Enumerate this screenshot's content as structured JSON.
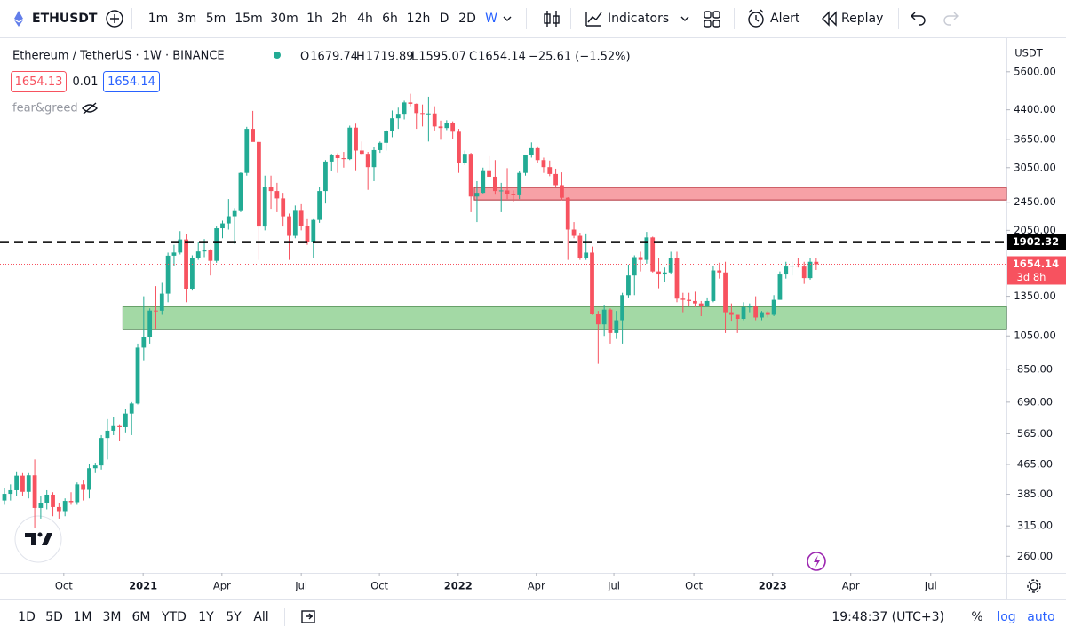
{
  "toolbar": {
    "symbol": "ETHUSDT",
    "intervals": [
      "1m",
      "3m",
      "5m",
      "15m",
      "30m",
      "1h",
      "2h",
      "4h",
      "6h",
      "12h",
      "D",
      "2D",
      "W"
    ],
    "buttons": [
      "Indicators",
      "Alert",
      "Replay"
    ]
  },
  "legend": {
    "title": "Ethereum / TetherUS · 1W · BINANCE",
    "labels": [
      "O",
      "H",
      "L",
      "C"
    ],
    "change": "−25.61 (−1.52%)",
    "bid": "1654.13",
    "spread": "0.01",
    "ask": "1654.14",
    "indicator": "fear&greed"
  },
  "price_axis": {
    "unit": "USDT",
    "countdown": "3d 8h"
  },
  "bottom_bar": {
    "ranges": [
      "1D",
      "5D",
      "1M",
      "3M",
      "6M",
      "YTD",
      "1Y",
      "5Y",
      "All"
    ],
    "time": "19:48:37 (UTC+3)",
    "options": [
      "%",
      "log",
      "auto"
    ]
  },
  "chart_data": {
    "type": "candlestick",
    "log_scale": true,
    "up_color": "#22ab94",
    "down_color": "#f7525f",
    "xlim": [
      -0.73,
      165.4
    ],
    "ylim": [
      234,
      6850
    ],
    "xticks": [
      {
        "value": 9.8,
        "label": "Oct"
      },
      {
        "value": 22.9,
        "label": "2021"
      },
      {
        "value": 35.9,
        "label": "Apr"
      },
      {
        "value": 49.0,
        "label": "Jul"
      },
      {
        "value": 61.9,
        "label": "Oct"
      },
      {
        "value": 74.9,
        "label": "2022"
      },
      {
        "value": 87.8,
        "label": "Apr"
      },
      {
        "value": 100.6,
        "label": "Jul"
      },
      {
        "value": 113.8,
        "label": "Oct"
      },
      {
        "value": 126.8,
        "label": "2023"
      },
      {
        "value": 139.7,
        "label": "Apr"
      },
      {
        "value": 152.9,
        "label": "Jul"
      }
    ],
    "yticks": [
      {
        "value": 5600,
        "label": "5600.00"
      },
      {
        "value": 4400,
        "label": "4400.00"
      },
      {
        "value": 3650,
        "label": "3650.00"
      },
      {
        "value": 3050,
        "label": "3050.00"
      },
      {
        "value": 2450,
        "label": "2450.00"
      },
      {
        "value": 2050,
        "label": "2050.00"
      },
      {
        "value": 1350,
        "label": "1350.00"
      },
      {
        "value": 1050,
        "label": "1050.00"
      },
      {
        "value": 850,
        "label": "850.00"
      },
      {
        "value": 690,
        "label": "690.00"
      },
      {
        "value": 565,
        "label": "565.00"
      },
      {
        "value": 465,
        "label": "465.00"
      },
      {
        "value": 385,
        "label": "385.00"
      },
      {
        "value": 315,
        "label": "315.00"
      },
      {
        "value": 260,
        "label": "260.00"
      }
    ],
    "lines": [
      {
        "value": 1902.32,
        "style": "dashed",
        "color": "#000000"
      }
    ],
    "zones": [
      {
        "from": 2485,
        "to": 2690,
        "start": 78,
        "color": "#f7a1a6",
        "border": "#b2333d"
      },
      {
        "from": 1093,
        "to": 1266,
        "start": 20,
        "color": "#a3d9a5",
        "border": "#2e6b30"
      }
    ],
    "ohlc": [
      [
        370,
        400,
        360,
        386
      ],
      [
        386,
        410,
        370,
        395
      ],
      [
        395,
        445,
        380,
        433
      ],
      [
        433,
        440,
        380,
        391
      ],
      [
        391,
        440,
        375,
        434
      ],
      [
        434,
        480,
        310,
        353
      ],
      [
        353,
        380,
        330,
        365
      ],
      [
        365,
        395,
        350,
        384
      ],
      [
        384,
        390,
        335,
        355
      ],
      [
        355,
        365,
        330,
        346
      ],
      [
        346,
        375,
        335,
        369
      ],
      [
        369,
        390,
        360,
        366
      ],
      [
        366,
        415,
        360,
        410
      ],
      [
        410,
        420,
        370,
        396
      ],
      [
        396,
        465,
        375,
        454
      ],
      [
        454,
        470,
        440,
        462
      ],
      [
        462,
        560,
        450,
        550
      ],
      [
        550,
        620,
        480,
        576
      ],
      [
        576,
        630,
        560,
        593
      ],
      [
        593,
        600,
        540,
        589
      ],
      [
        589,
        660,
        570,
        642
      ],
      [
        642,
        690,
        560,
        684
      ],
      [
        684,
        1000,
        680,
        975
      ],
      [
        975,
        1350,
        900,
        1040
      ],
      [
        1040,
        1250,
        1000,
        1233
      ],
      [
        1233,
        1440,
        1100,
        1232
      ],
      [
        1232,
        1470,
        1200,
        1373
      ],
      [
        1373,
        1780,
        1300,
        1746
      ],
      [
        1746,
        1870,
        1640,
        1781
      ],
      [
        1781,
        2040,
        1760,
        1935
      ],
      [
        1935,
        2000,
        1300,
        1417
      ],
      [
        1417,
        1750,
        1400,
        1720
      ],
      [
        1720,
        1900,
        1700,
        1793
      ],
      [
        1793,
        1940,
        1730,
        1810
      ],
      [
        1810,
        1820,
        1540,
        1690
      ],
      [
        1690,
        2100,
        1670,
        2077
      ],
      [
        2077,
        2180,
        1950,
        2142
      ],
      [
        2142,
        2500,
        2060,
        2241
      ],
      [
        2241,
        2360,
        1880,
        2316
      ],
      [
        2316,
        2960,
        2300,
        2950
      ],
      [
        2950,
        3950,
        2900,
        3900
      ],
      [
        3900,
        4370,
        3600,
        3590
      ],
      [
        3590,
        3600,
        1700,
        2100
      ],
      [
        2100,
        2900,
        2050,
        2700
      ],
      [
        2700,
        2900,
        2350,
        2630
      ],
      [
        2630,
        2770,
        2300,
        2510
      ],
      [
        2510,
        2600,
        2100,
        2240
      ],
      [
        2240,
        2280,
        1700,
        1980
      ],
      [
        1980,
        2400,
        1950,
        2320
      ],
      [
        2320,
        2420,
        2050,
        2110
      ],
      [
        2110,
        2200,
        1870,
        1900
      ],
      [
        1900,
        2200,
        1720,
        2190
      ],
      [
        2190,
        2700,
        2150,
        2630
      ],
      [
        2630,
        3200,
        2430,
        3170
      ],
      [
        3170,
        3330,
        2980,
        3300
      ],
      [
        3300,
        3340,
        2950,
        3240
      ],
      [
        3240,
        3370,
        3050,
        3220
      ],
      [
        3220,
        3980,
        3200,
        3930
      ],
      [
        3930,
        4030,
        3000,
        3400
      ],
      [
        3400,
        3600,
        3300,
        3330
      ],
      [
        3330,
        3370,
        2650,
        3060
      ],
      [
        3060,
        3480,
        2800,
        3410
      ],
      [
        3410,
        3600,
        3350,
        3570
      ],
      [
        3570,
        3880,
        3400,
        3850
      ],
      [
        3850,
        4380,
        3700,
        4170
      ],
      [
        4170,
        4460,
        3900,
        4290
      ],
      [
        4290,
        4660,
        4140,
        4610
      ],
      [
        4610,
        4870,
        4500,
        4570
      ],
      [
        4570,
        4580,
        3900,
        4310
      ],
      [
        4310,
        4550,
        3960,
        4290
      ],
      [
        4290,
        4780,
        3600,
        4300
      ],
      [
        4300,
        4500,
        3860,
        3960
      ],
      [
        3960,
        4110,
        3640,
        3920
      ],
      [
        3920,
        4120,
        3870,
        4040
      ],
      [
        4040,
        4090,
        3650,
        3830
      ],
      [
        3830,
        3900,
        2950,
        3150
      ],
      [
        3150,
        3400,
        3100,
        3330
      ],
      [
        3330,
        3350,
        2300,
        2540
      ],
      [
        2540,
        2800,
        2160,
        2600
      ],
      [
        2600,
        3050,
        2590,
        3000
      ],
      [
        3000,
        3280,
        2900,
        2880
      ],
      [
        2880,
        3200,
        2570,
        2630
      ],
      [
        2630,
        2770,
        2300,
        2640
      ],
      [
        2640,
        3040,
        2500,
        2580
      ],
      [
        2580,
        2640,
        2450,
        2560
      ],
      [
        2560,
        2990,
        2500,
        2950
      ],
      [
        2950,
        3300,
        2900,
        3300
      ],
      [
        3300,
        3580,
        3250,
        3450
      ],
      [
        3450,
        3490,
        3150,
        3200
      ],
      [
        3200,
        3250,
        2950,
        3060
      ],
      [
        3060,
        3190,
        2890,
        2930
      ],
      [
        2930,
        3030,
        2700,
        2730
      ],
      [
        2730,
        2960,
        2480,
        2520
      ],
      [
        2520,
        2530,
        1700,
        2060
      ],
      [
        2060,
        2160,
        1950,
        1980
      ],
      [
        1980,
        2020,
        1700,
        1725
      ],
      [
        1725,
        2010,
        1700,
        1780
      ],
      [
        1780,
        1850,
        1200,
        1210
      ],
      [
        1210,
        1230,
        880,
        1130
      ],
      [
        1130,
        1280,
        1050,
        1240
      ],
      [
        1240,
        1250,
        1000,
        1070
      ],
      [
        1070,
        1230,
        1030,
        1160
      ],
      [
        1160,
        1380,
        1000,
        1360
      ],
      [
        1360,
        1650,
        1340,
        1540
      ],
      [
        1540,
        1750,
        1360,
        1730
      ],
      [
        1730,
        1790,
        1580,
        1700
      ],
      [
        1700,
        2030,
        1660,
        1960
      ],
      [
        1960,
        1970,
        1570,
        1580
      ],
      [
        1580,
        1720,
        1420,
        1550
      ],
      [
        1550,
        1620,
        1480,
        1570
      ],
      [
        1570,
        1790,
        1550,
        1720
      ],
      [
        1720,
        1790,
        1300,
        1330
      ],
      [
        1330,
        1380,
        1220,
        1320
      ],
      [
        1320,
        1380,
        1270,
        1310
      ],
      [
        1310,
        1390,
        1260,
        1290
      ],
      [
        1290,
        1310,
        1190,
        1270
      ],
      [
        1270,
        1340,
        1260,
        1310
      ],
      [
        1310,
        1640,
        1300,
        1590
      ],
      [
        1590,
        1670,
        1510,
        1570
      ],
      [
        1570,
        1680,
        1070,
        1220
      ],
      [
        1220,
        1290,
        1150,
        1200
      ],
      [
        1200,
        1200,
        1070,
        1170
      ],
      [
        1170,
        1300,
        1160,
        1260
      ],
      [
        1260,
        1290,
        1220,
        1265
      ],
      [
        1265,
        1350,
        1160,
        1180
      ],
      [
        1180,
        1230,
        1160,
        1220
      ],
      [
        1220,
        1230,
        1180,
        1200
      ],
      [
        1200,
        1360,
        1190,
        1320
      ],
      [
        1320,
        1580,
        1320,
        1550
      ],
      [
        1550,
        1680,
        1510,
        1630
      ],
      [
        1630,
        1680,
        1540,
        1640
      ],
      [
        1640,
        1720,
        1620,
        1630
      ],
      [
        1630,
        1680,
        1460,
        1515
      ],
      [
        1515,
        1720,
        1500,
        1680
      ],
      [
        1679.74,
        1719.89,
        1595.07,
        1654.14
      ]
    ]
  }
}
